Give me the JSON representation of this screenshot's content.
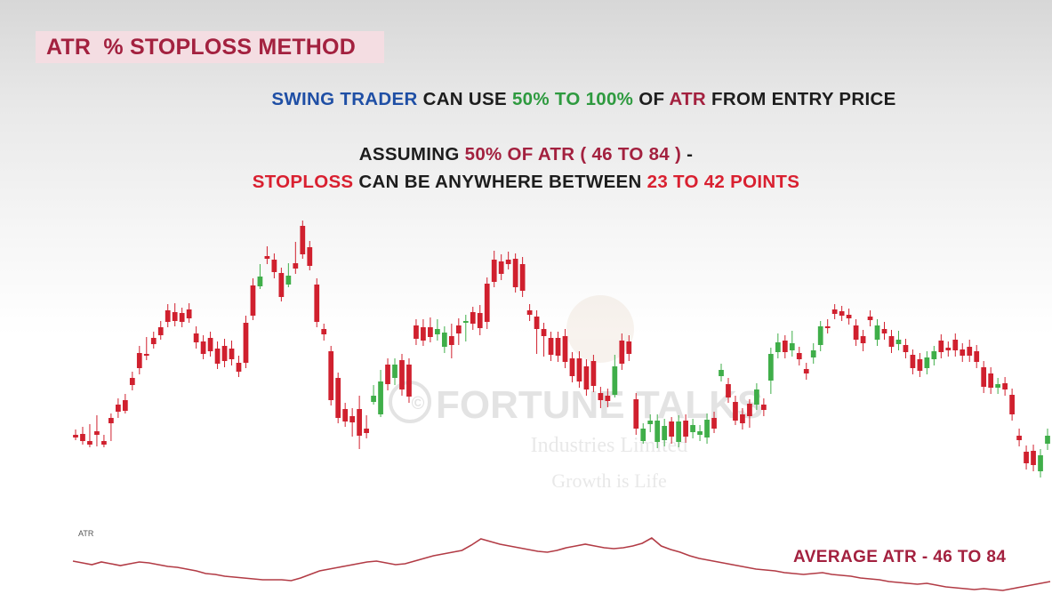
{
  "title": "ATR  % STOPLOSS METHOD",
  "headline": {
    "part1": "SWING TRADER",
    "part2": " CAN USE ",
    "part3": "50% TO 100%",
    "part4": " OF ",
    "part5": "ATR",
    "part6": " FROM ENTRY PRICE"
  },
  "assumption": {
    "part1": "ASSUMING ",
    "part2": "50% OF ATR ( 46 TO 84 )",
    "part3": " -"
  },
  "stoploss": {
    "part1": "STOPLOSS",
    "part2": " CAN BE ANYWHERE BETWEEN ",
    "part3": "23 TO 42 POINTS"
  },
  "watermark": {
    "brand": "FORTUNE TALKS",
    "company": "Industries Limited",
    "tagline": "Growth is Life"
  },
  "colors": {
    "up": "#3fae49",
    "down": "#d0202e",
    "atr_line": "#b23b45",
    "accent": "#a3213f"
  },
  "chart_data": {
    "type": "candlestick",
    "price_panel": {
      "candles_ohlc": [
        [
          489,
          492,
          486,
          490
        ],
        [
          488,
          496,
          483,
          497
        ],
        [
          496,
          500,
          480,
          489
        ],
        [
          485,
          489,
          470,
          499
        ],
        [
          496,
          500,
          492,
          495
        ],
        [
          470,
          476,
          468,
          493
        ],
        [
          455,
          463,
          451,
          467
        ],
        [
          450,
          462,
          446,
          460
        ],
        [
          425,
          433,
          421,
          436
        ],
        [
          397,
          414,
          392,
          418
        ],
        [
          398,
          400,
          382,
          402
        ],
        [
          380,
          387,
          376,
          389
        ],
        [
          368,
          377,
          364,
          379
        ],
        [
          349,
          362,
          345,
          365
        ],
        [
          351,
          361,
          344,
          364
        ],
        [
          352,
          362,
          349,
          365
        ],
        [
          348,
          358,
          344,
          360
        ],
        [
          375,
          385,
          370,
          389
        ],
        [
          384,
          398,
          380,
          401
        ],
        [
          380,
          395,
          376,
          398
        ],
        [
          392,
          409,
          387,
          412
        ],
        [
          389,
          406,
          384,
          410
        ],
        [
          392,
          404,
          386,
          408
        ],
        [
          408,
          418,
          403,
          421
        ],
        [
          363,
          408,
          358,
          411
        ],
        [
          321,
          355,
          316,
          357
        ],
        [
          322,
          311,
          300,
          314
        ],
        [
          288,
          291,
          280,
          294
        ],
        [
          292,
          306,
          288,
          310
        ],
        [
          307,
          334,
          304,
          336
        ],
        [
          320,
          310,
          299,
          314
        ],
        [
          296,
          302,
          275,
          305
        ],
        [
          254,
          286,
          251,
          288
        ],
        [
          278,
          299,
          274,
          301
        ],
        [
          320,
          362,
          316,
          365
        ],
        [
          370,
          376,
          367,
          380
        ],
        [
          395,
          450,
          392,
          453
        ],
        [
          425,
          470,
          422,
          473
        ],
        [
          460,
          474,
          456,
          477
        ],
        [
          468,
          475,
          462,
          488
        ],
        [
          460,
          490,
          448,
          502
        ],
        [
          482,
          487,
          470,
          490
        ],
        [
          452,
          445,
          436,
          449
        ],
        [
          466,
          429,
          419,
          435
        ],
        [
          410,
          432,
          406,
          436
        ],
        [
          425,
          410,
          406,
          430
        ],
        [
          405,
          438,
          401,
          442
        ],
        [
          410,
          446,
          406,
          450
        ],
        [
          366,
          381,
          362,
          385
        ],
        [
          368,
          383,
          362,
          386
        ],
        [
          368,
          379,
          360,
          382
        ],
        [
          376,
          370,
          362,
          380
        ],
        [
          390,
          374,
          370,
          394
        ],
        [
          378,
          388,
          367,
          400
        ],
        [
          366,
          375,
          361,
          385
        ],
        [
          362,
          361,
          357,
          381
        ],
        [
          351,
          364,
          348,
          368
        ],
        [
          352,
          369,
          346,
          374
        ],
        [
          319,
          362,
          315,
          367
        ],
        [
          292,
          317,
          285,
          320
        ],
        [
          294,
          308,
          289,
          312
        ],
        [
          292,
          297,
          286,
          300
        ],
        [
          291,
          323,
          288,
          326
        ],
        [
          297,
          327,
          292,
          331
        ],
        [
          349,
          354,
          345,
          358
        ],
        [
          356,
          370,
          352,
          395
        ],
        [
          370,
          378,
          366,
          398
        ],
        [
          380,
          399,
          376,
          403
        ],
        [
          380,
          400,
          376,
          404
        ],
        [
          378,
          407,
          373,
          411
        ],
        [
          403,
          423,
          399,
          427
        ],
        [
          403,
          429,
          398,
          433
        ],
        [
          412,
          438,
          407,
          442
        ],
        [
          406,
          434,
          402,
          438
        ],
        [
          442,
          450,
          438,
          456
        ],
        [
          445,
          451,
          440,
          455
        ],
        [
          444,
          412,
          402,
          417
        ],
        [
          383,
          409,
          378,
          413
        ],
        [
          384,
          398,
          380,
          403
        ],
        [
          449,
          482,
          445,
          486
        ],
        [
          496,
          482,
          479,
          493
        ],
        [
          477,
          473,
          469,
          483
        ],
        [
          497,
          473,
          469,
          501
        ],
        [
          495,
          479,
          474,
          499
        ],
        [
          474,
          491,
          472,
          496
        ],
        [
          497,
          474,
          470,
          500
        ],
        [
          473,
          491,
          469,
          495
        ],
        [
          486,
          478,
          474,
          490
        ],
        [
          489,
          485,
          481,
          493
        ],
        [
          492,
          472,
          468,
          496
        ],
        [
          470,
          482,
          466,
          484
        ],
        [
          423,
          416,
          412,
          426
        ],
        [
          432,
          447,
          428,
          450
        ],
        [
          452,
          473,
          448,
          475
        ],
        [
          466,
          476,
          462,
          480
        ],
        [
          454,
          468,
          452,
          478
        ],
        [
          455,
          438,
          434,
          458
        ],
        [
          455,
          461,
          451,
          465
        ],
        [
          428,
          398,
          394,
          440
        ],
        [
          396,
          385,
          378,
          400
        ],
        [
          383,
          396,
          380,
          400
        ],
        [
          394,
          386,
          375,
          398
        ],
        [
          397,
          404,
          393,
          408
        ],
        [
          415,
          420,
          411,
          424
        ],
        [
          402,
          394,
          389,
          406
        ],
        [
          388,
          367,
          364,
          392
        ],
        [
          367,
          369,
          362,
          372
        ],
        [
          348,
          353,
          345,
          356
        ],
        [
          350,
          355,
          347,
          358
        ],
        [
          354,
          358,
          350,
          362
        ],
        [
          366,
          382,
          362,
          386
        ],
        [
          378,
          386,
          374,
          392
        ],
        [
          356,
          360,
          352,
          364
        ],
        [
          382,
          366,
          362,
          386
        ],
        [
          370,
          375,
          365,
          379
        ],
        [
          378,
          390,
          374,
          394
        ],
        [
          387,
          382,
          375,
          391
        ],
        [
          388,
          396,
          384,
          400
        ],
        [
          399,
          414,
          396,
          418
        ],
        [
          404,
          417,
          400,
          421
        ],
        [
          414,
          402,
          398,
          418
        ],
        [
          404,
          395,
          392,
          408
        ],
        [
          383,
          396,
          379,
          400
        ],
        [
          391,
          394,
          387,
          398
        ],
        [
          382,
          394,
          378,
          398
        ],
        [
          393,
          400,
          389,
          404
        ],
        [
          390,
          400,
          385,
          404
        ],
        [
          395,
          407,
          391,
          411
        ],
        [
          413,
          435,
          409,
          439
        ],
        [
          420,
          436,
          416,
          440
        ],
        [
          436,
          432,
          428,
          440
        ],
        [
          431,
          438,
          427,
          442
        ],
        [
          444,
          466,
          440,
          470
        ],
        [
          490,
          495,
          485,
          499
        ],
        [
          508,
          521,
          504,
          525
        ],
        [
          507,
          523,
          503,
          527
        ],
        [
          530,
          512,
          508,
          534
        ],
        [
          499,
          490,
          485,
          503
        ]
      ],
      "note": "values are price levels read on the chart's vertical scale (inverted pixel-free units; no axis labels printed)"
    },
    "atr_panel": {
      "label": "ATR",
      "values": [
        631,
        633,
        635,
        632,
        634,
        636,
        634,
        632,
        633,
        635,
        637,
        638,
        640,
        642,
        645,
        646,
        648,
        649,
        650,
        651,
        652,
        652,
        652,
        653,
        650,
        646,
        642,
        640,
        638,
        636,
        634,
        632,
        631,
        633,
        635,
        634,
        631,
        628,
        625,
        623,
        621,
        619,
        613,
        606,
        609,
        612,
        614,
        616,
        618,
        620,
        621,
        619,
        616,
        614,
        612,
        614,
        616,
        617,
        616,
        614,
        611,
        605,
        614,
        618,
        621,
        625,
        628,
        630,
        632,
        634,
        636,
        638,
        640,
        641,
        642,
        644,
        645,
        646,
        645,
        644,
        646,
        647,
        648,
        650,
        651,
        652,
        654,
        655,
        656,
        657,
        656,
        658,
        660,
        661,
        662,
        663,
        662,
        663,
        664,
        662,
        660,
        658,
        656,
        654
      ],
      "annotation": "AVERAGE ATR - 46 TO 84"
    }
  }
}
